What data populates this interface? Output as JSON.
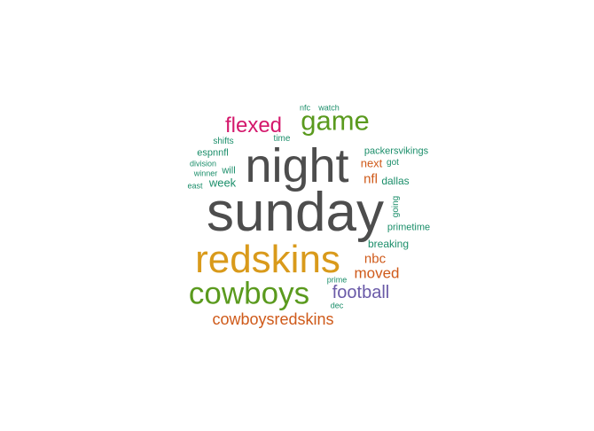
{
  "colors": {
    "dark_gray": "#4d4d4d",
    "mustard": "#d99a1b",
    "green": "#5a9a1e",
    "magenta": "#d4186c",
    "orange": "#cf5a1a",
    "purple": "#6a5aa8",
    "teal": "#1b8e6a"
  },
  "words": [
    {
      "text": "sunday"
    },
    {
      "text": "night"
    },
    {
      "text": "redskins"
    },
    {
      "text": "cowboys"
    },
    {
      "text": "game"
    },
    {
      "text": "flexed"
    },
    {
      "text": "football"
    },
    {
      "text": "cowboysredskins"
    },
    {
      "text": "moved"
    },
    {
      "text": "nbc"
    },
    {
      "text": "nfl"
    },
    {
      "text": "next"
    },
    {
      "text": "dallas"
    },
    {
      "text": "got"
    },
    {
      "text": "packersvikings"
    },
    {
      "text": "breaking"
    },
    {
      "text": "primetime"
    },
    {
      "text": "going"
    },
    {
      "text": "week"
    },
    {
      "text": "will"
    },
    {
      "text": "espnnfl"
    },
    {
      "text": "shifts"
    },
    {
      "text": "division"
    },
    {
      "text": "winner"
    },
    {
      "text": "east"
    },
    {
      "text": "time"
    },
    {
      "text": "nfc"
    },
    {
      "text": "watch"
    },
    {
      "text": "prime"
    },
    {
      "text": "dec"
    }
  ]
}
